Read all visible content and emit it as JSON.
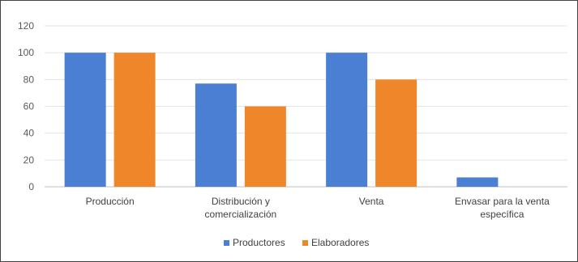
{
  "chart_data": {
    "type": "bar",
    "categories": [
      [
        "Producción"
      ],
      [
        "Distribución y",
        "comercialización"
      ],
      [
        "Venta"
      ],
      [
        "Envasar para la venta",
        "específica"
      ]
    ],
    "series": [
      {
        "name": "Productores",
        "color": "#4a7fd4",
        "values": [
          100,
          77,
          100,
          7
        ]
      },
      {
        "name": "Elaboradores",
        "color": "#f0862a",
        "values": [
          100,
          60,
          80,
          0
        ]
      }
    ],
    "ylim": [
      0,
      120
    ],
    "yticks": [
      0,
      20,
      40,
      60,
      80,
      100,
      120
    ],
    "grid": true,
    "legend_position": "bottom"
  }
}
